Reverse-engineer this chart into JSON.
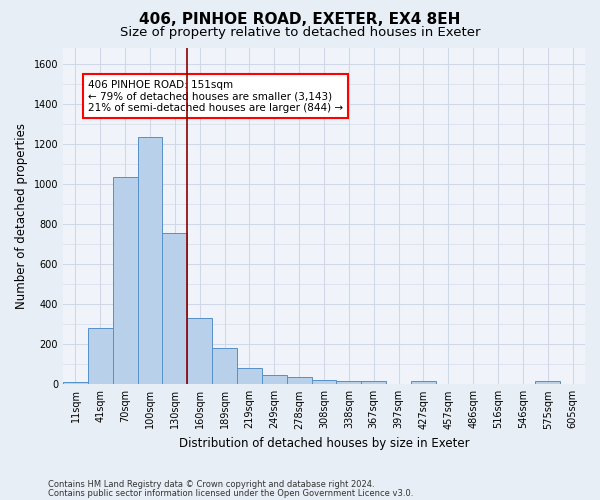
{
  "title": "406, PINHOE ROAD, EXETER, EX4 8EH",
  "subtitle": "Size of property relative to detached houses in Exeter",
  "xlabel": "Distribution of detached houses by size in Exeter",
  "ylabel": "Number of detached properties",
  "bin_labels": [
    "11sqm",
    "41sqm",
    "70sqm",
    "100sqm",
    "130sqm",
    "160sqm",
    "189sqm",
    "219sqm",
    "249sqm",
    "278sqm",
    "308sqm",
    "338sqm",
    "367sqm",
    "397sqm",
    "427sqm",
    "457sqm",
    "486sqm",
    "516sqm",
    "546sqm",
    "575sqm",
    "605sqm"
  ],
  "bar_heights": [
    10,
    280,
    1035,
    1235,
    755,
    330,
    180,
    80,
    45,
    38,
    20,
    15,
    15,
    0,
    15,
    0,
    0,
    0,
    0,
    15,
    0
  ],
  "bar_color": "#b8d0ea",
  "bar_edge_color": "#5590c8",
  "vline_x": 4.5,
  "vline_color": "#8b0000",
  "annotation_text": "406 PINHOE ROAD: 151sqm\n← 79% of detached houses are smaller (3,143)\n21% of semi-detached houses are larger (844) →",
  "annotation_box_color": "white",
  "annotation_box_edge_color": "red",
  "ylim": [
    0,
    1680
  ],
  "yticks": [
    0,
    200,
    400,
    600,
    800,
    1000,
    1200,
    1400,
    1600
  ],
  "footer1": "Contains HM Land Registry data © Crown copyright and database right 2024.",
  "footer2": "Contains public sector information licensed under the Open Government Licence v3.0.",
  "bg_color": "#e8eef5",
  "plot_bg_color": "#f0f4fa",
  "grid_color": "#d0d8e8",
  "title_fontsize": 11,
  "subtitle_fontsize": 9.5,
  "label_fontsize": 8.5,
  "tick_fontsize": 7,
  "footer_fontsize": 6
}
